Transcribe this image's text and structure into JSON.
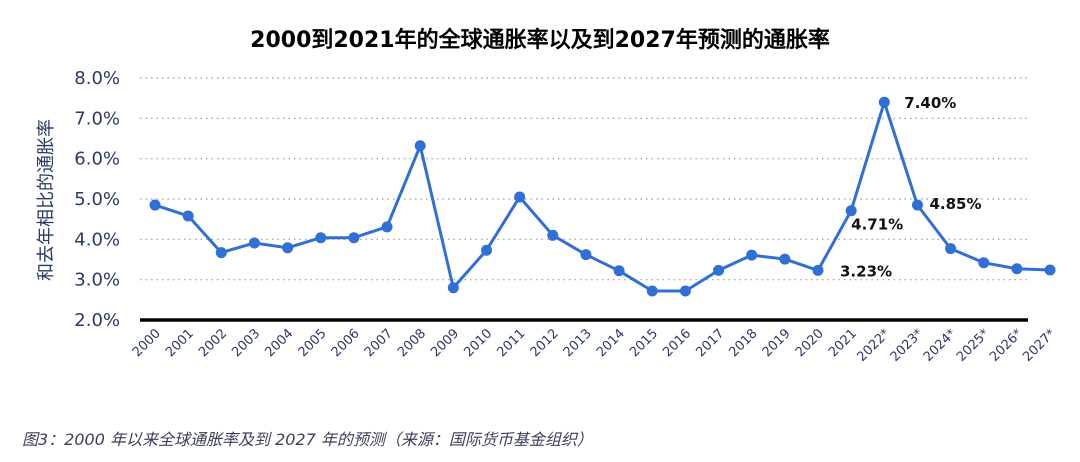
{
  "title": "2000到2021年的全球通胀率以及到2027年预测的通胀率",
  "caption": "图3：2000 年以来全球通胀率及到 2027 年的预测（来源：国际货币基金组织）",
  "colors": {
    "line": "#2f6fd6",
    "marker": "#2f6fd6",
    "axis": "#000000",
    "grid": "#999999",
    "text": "#2b3a67"
  },
  "chart_data": {
    "type": "line",
    "title": "2000到2021年的全球通胀率以及到2027年预测的通胀率",
    "ylabel": "和去年相比的通胀率",
    "xlabel": "",
    "ylim": [
      2.0,
      8.0
    ],
    "y_ticks": [
      "2.0%",
      "3.0%",
      "4.0%",
      "5.0%",
      "6.0%",
      "7.0%",
      "8.0%"
    ],
    "grid": "horizontal dotted",
    "categories": [
      "2000",
      "2001",
      "2002",
      "2003",
      "2004",
      "2005",
      "2006",
      "2007",
      "2008",
      "2009",
      "2010",
      "2011",
      "2012",
      "2013",
      "2014",
      "2015",
      "2016",
      "2017",
      "2018",
      "2019",
      "2020",
      "2021",
      "2022*",
      "2023*",
      "2024*",
      "2025*",
      "2026*",
      "2027*"
    ],
    "series": [
      {
        "values": [
          4.85,
          4.58,
          3.67,
          3.91,
          3.79,
          4.04,
          4.04,
          4.31,
          6.32,
          2.8,
          3.73,
          5.05,
          4.1,
          3.62,
          3.22,
          2.72,
          2.72,
          3.23,
          3.61,
          3.51,
          3.23,
          4.71,
          7.4,
          4.85,
          3.77,
          3.42,
          3.27,
          3.24
        ]
      }
    ],
    "annotations": [
      {
        "index": 22,
        "text": "7.40%"
      },
      {
        "index": 23,
        "text": "4.85%"
      },
      {
        "index": 21,
        "text": "4.71%"
      },
      {
        "index": 20,
        "text": "3.23%"
      }
    ]
  }
}
